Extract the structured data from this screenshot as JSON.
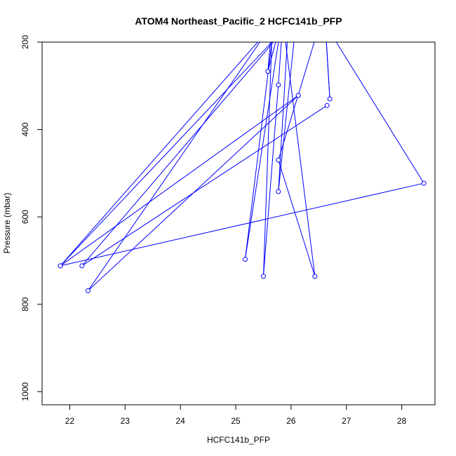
{
  "chart_data": {
    "type": "line",
    "title": "ATOM4 Northeast_Pacific_2 HCFC141b_PFP",
    "xlabel": "HCFC141b_PFP",
    "ylabel": "Pressure (mbar)",
    "xlim": [
      21.5,
      28.6
    ],
    "ylim": [
      1030,
      200
    ],
    "y_reversed": true,
    "x_ticks": [
      22,
      23,
      24,
      25,
      26,
      27,
      28
    ],
    "y_ticks": [
      200,
      400,
      600,
      800,
      1000
    ],
    "grid": false,
    "legend": "none",
    "series": [
      {
        "color": "#0000ff",
        "marker": "open-circle",
        "points": [
          {
            "x": 25.73,
            "y": 120
          },
          {
            "x": 25.17,
            "y": 697
          },
          {
            "x": 25.85,
            "y": 135
          },
          {
            "x": 21.83,
            "y": 712
          },
          {
            "x": 26.13,
            "y": 322
          },
          {
            "x": 22.33,
            "y": 769
          },
          {
            "x": 25.9,
            "y": 115
          },
          {
            "x": 25.58,
            "y": 267
          },
          {
            "x": 25.67,
            "y": 130
          },
          {
            "x": 25.5,
            "y": 736
          },
          {
            "x": 25.77,
            "y": 298
          },
          {
            "x": 25.85,
            "y": 150
          },
          {
            "x": 26.43,
            "y": 736
          },
          {
            "x": 25.77,
            "y": 470
          },
          {
            "x": 26.6,
            "y": 125
          },
          {
            "x": 26.7,
            "y": 330
          },
          {
            "x": 26.62,
            "y": 160
          },
          {
            "x": 28.4,
            "y": 523
          },
          {
            "x": 21.83,
            "y": 712
          },
          {
            "x": 26.1,
            "y": 140
          },
          {
            "x": 25.77,
            "y": 542
          },
          {
            "x": 25.95,
            "y": 160
          },
          {
            "x": 22.22,
            "y": 712
          },
          {
            "x": 26.65,
            "y": 345
          }
        ]
      }
    ]
  }
}
